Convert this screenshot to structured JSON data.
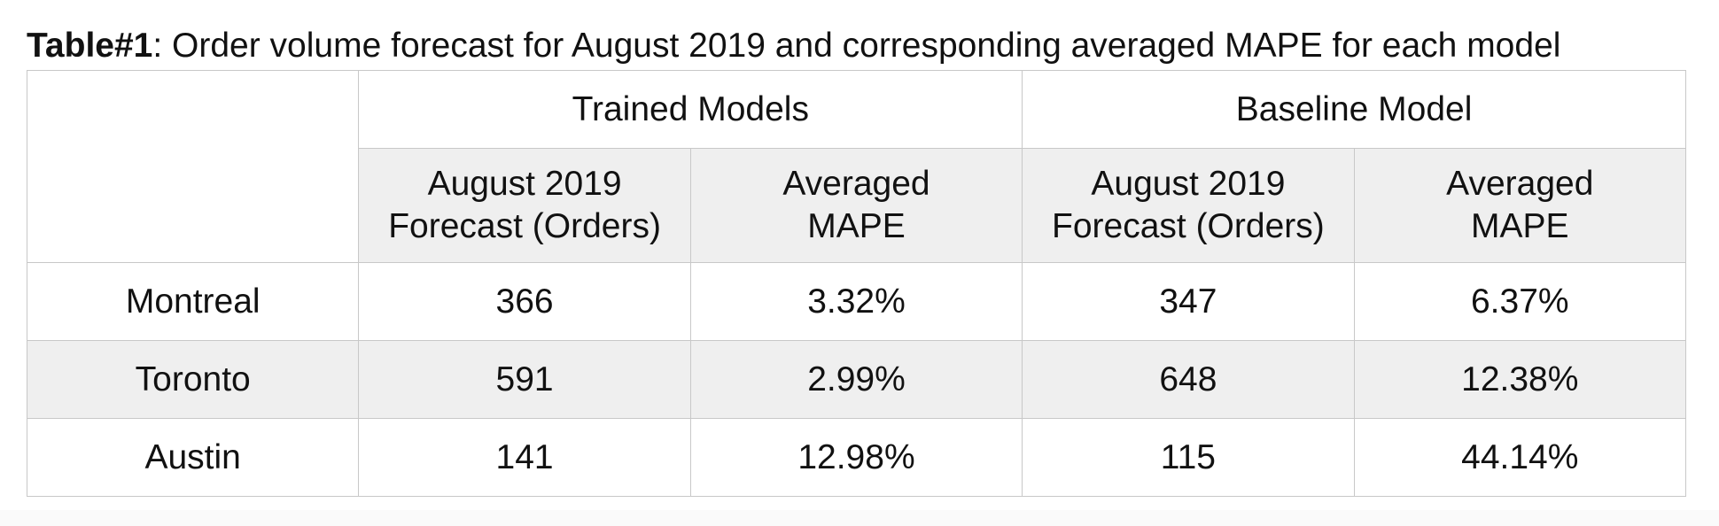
{
  "caption": {
    "label": "Table#1",
    "text": ": Order volume forecast for August 2019 and corresponding averaged MAPE for each model"
  },
  "table": {
    "corner": "",
    "groups": [
      "Trained Models",
      "Baseline Model"
    ],
    "subheaders": [
      "August 2019\nForecast (Orders)",
      "Averaged\nMAPE",
      "August 2019\nForecast (Orders)",
      "Averaged\nMAPE"
    ],
    "rows": [
      {
        "city": "Montreal",
        "values": [
          "366",
          "3.32%",
          "347",
          "6.37%"
        ]
      },
      {
        "city": "Toronto",
        "values": [
          "591",
          "2.99%",
          "648",
          "12.38%"
        ]
      },
      {
        "city": "Austin",
        "values": [
          "141",
          "12.98%",
          "115",
          "44.14%"
        ]
      }
    ]
  },
  "colors": {
    "shaded_row": "#efefef",
    "border": "#c8c8c8",
    "text": "#111111"
  }
}
